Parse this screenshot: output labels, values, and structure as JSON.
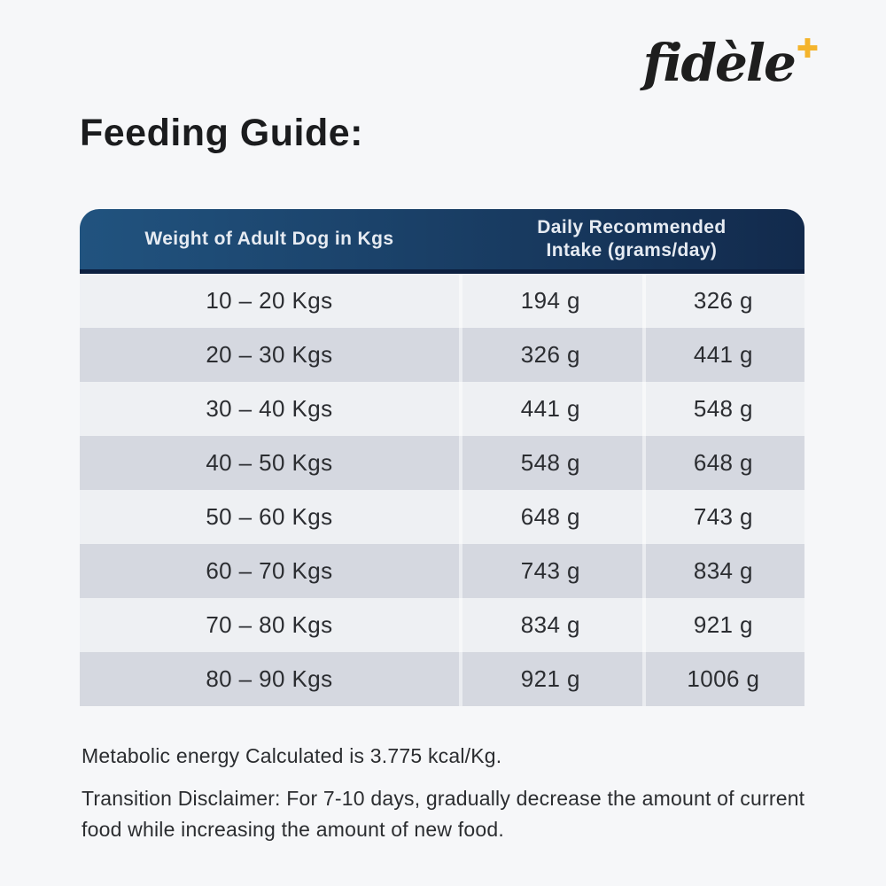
{
  "logo": {
    "text": "fidèle",
    "plus_glyph": "✚"
  },
  "title": "Feeding Guide:",
  "table": {
    "header": {
      "weight_col": "Weight of Adult Dog in Kgs",
      "intake_col_line1": "Daily Recommended",
      "intake_col_line2": "Intake (grams/day)"
    },
    "rows": [
      {
        "weight": "10 – 20 Kgs",
        "min": "194 g",
        "max": "326 g"
      },
      {
        "weight": "20 – 30 Kgs",
        "min": "326 g",
        "max": "441 g"
      },
      {
        "weight": "30 – 40 Kgs",
        "min": "441 g",
        "max": "548 g"
      },
      {
        "weight": "40 – 50 Kgs",
        "min": "548 g",
        "max": "648 g"
      },
      {
        "weight": "50 – 60 Kgs",
        "min": "648 g",
        "max": "743 g"
      },
      {
        "weight": "60 – 70 Kgs",
        "min": "743 g",
        "max": "834 g"
      },
      {
        "weight": "70 – 80 Kgs",
        "min": "834 g",
        "max": "921 g"
      },
      {
        "weight": "80 – 90 Kgs",
        "min": "921 g",
        "max": "1006 g"
      }
    ]
  },
  "notes": {
    "metabolic_energy": "Metabolic energy Calculated is 3.775 kcal/Kg.",
    "transition_disclaimer": "Transition Disclaimer: For 7-10 days, gradually decrease the amount of current food while increasing the amount of new food."
  },
  "colors": {
    "page_bg": "#f6f7f9",
    "header_gradient_left": "#21537f",
    "header_gradient_right": "#122a4c",
    "header_border_bottom": "#0d2040",
    "header_text": "#e6ebf2",
    "row_light": "#eef0f3",
    "row_dark": "#d5d8e0",
    "cell_text": "#2b2d31",
    "title_text": "#1b1c1e",
    "note_text": "#2b2d30",
    "logo_text": "#1e1e1e",
    "logo_plus": "#f4b42c",
    "separator": "rgba(255,255,255,0.5)"
  }
}
